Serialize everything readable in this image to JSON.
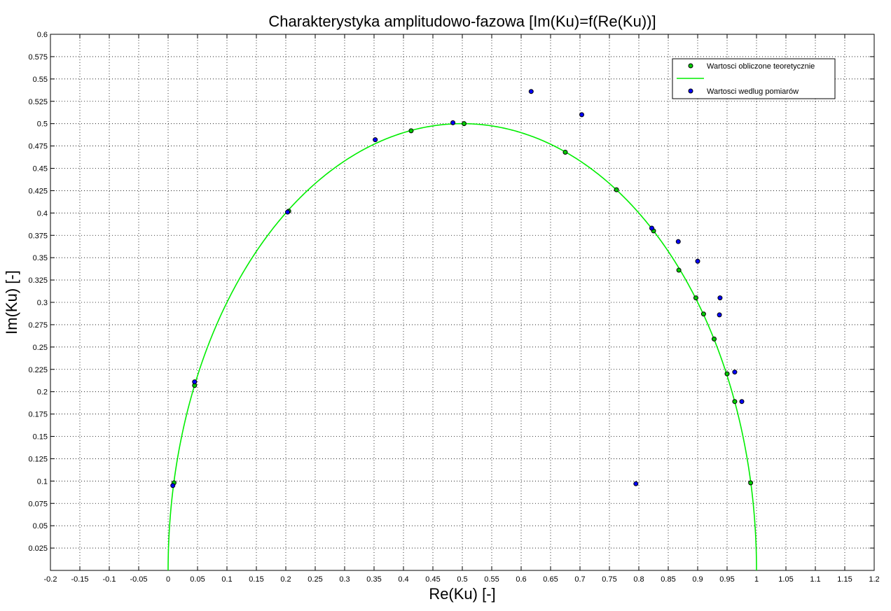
{
  "chart_data": {
    "type": "scatter",
    "title": "Charakterystyka amplitudowo-fazowa [Im(Ku)=f(Re(Ku))]",
    "xlabel": "Re(Ku) [-]",
    "ylabel": "Im(Ku) [-]",
    "xlim": [
      -0.2,
      1.2
    ],
    "ylim": [
      0,
      0.6
    ],
    "x_ticks": [
      "-0.2",
      "-0.15",
      "-0.1",
      "-0.05",
      "0",
      "0.05",
      "0.1",
      "0.15",
      "0.2",
      "0.25",
      "0.3",
      "0.35",
      "0.4",
      "0.45",
      "0.5",
      "0.55",
      "0.6",
      "0.65",
      "0.7",
      "0.75",
      "0.8",
      "0.85",
      "0.9",
      "0.95",
      "1",
      "1.05",
      "1.1",
      "1.15",
      "1.2"
    ],
    "y_ticks": [
      "0.025",
      "0.05",
      "0.075",
      "0.1",
      "0.125",
      "0.15",
      "0.175",
      "0.2",
      "0.225",
      "0.25",
      "0.275",
      "0.3",
      "0.325",
      "0.35",
      "0.375",
      "0.4",
      "0.425",
      "0.45",
      "0.475",
      "0.5",
      "0.525",
      "0.55",
      "0.575",
      "0.6"
    ],
    "grid": true,
    "legend_position": "top-right",
    "legend": [
      "Wartosci obliczone teoretycznie",
      "",
      "Wartosci wedlug pomiarów"
    ],
    "series": [
      {
        "name": "Wartosci obliczone teoretycznie",
        "kind": "markers",
        "color": "#00cc00",
        "edge": "#000000",
        "points": [
          [
            0.01,
            0.098
          ],
          [
            0.045,
            0.207
          ],
          [
            0.205,
            0.402
          ],
          [
            0.413,
            0.492
          ],
          [
            0.503,
            0.5
          ],
          [
            0.675,
            0.468
          ],
          [
            0.762,
            0.426
          ],
          [
            0.825,
            0.38
          ],
          [
            0.868,
            0.336
          ],
          [
            0.897,
            0.305
          ],
          [
            0.91,
            0.287
          ],
          [
            0.928,
            0.259
          ],
          [
            0.95,
            0.22
          ],
          [
            0.963,
            0.189
          ],
          [
            0.99,
            0.098
          ]
        ]
      },
      {
        "name": "",
        "kind": "line",
        "color": "#00ee00",
        "curve": "x = 1/(1+w^2), y = w/(1+w^2), extended to the axis edges"
      },
      {
        "name": "Wartosci wedlug pomiarów",
        "kind": "markers",
        "color": "#0000ff",
        "edge": "#000000",
        "points": [
          [
            0.008,
            0.095
          ],
          [
            0.045,
            0.211
          ],
          [
            0.203,
            0.401
          ],
          [
            0.352,
            0.482
          ],
          [
            0.484,
            0.501
          ],
          [
            0.617,
            0.536
          ],
          [
            0.703,
            0.51
          ],
          [
            0.795,
            0.097
          ],
          [
            0.822,
            0.383
          ],
          [
            0.867,
            0.368
          ],
          [
            0.9,
            0.346
          ],
          [
            0.938,
            0.305
          ],
          [
            0.937,
            0.286
          ],
          [
            0.963,
            0.222
          ],
          [
            0.975,
            0.189
          ]
        ]
      }
    ]
  }
}
